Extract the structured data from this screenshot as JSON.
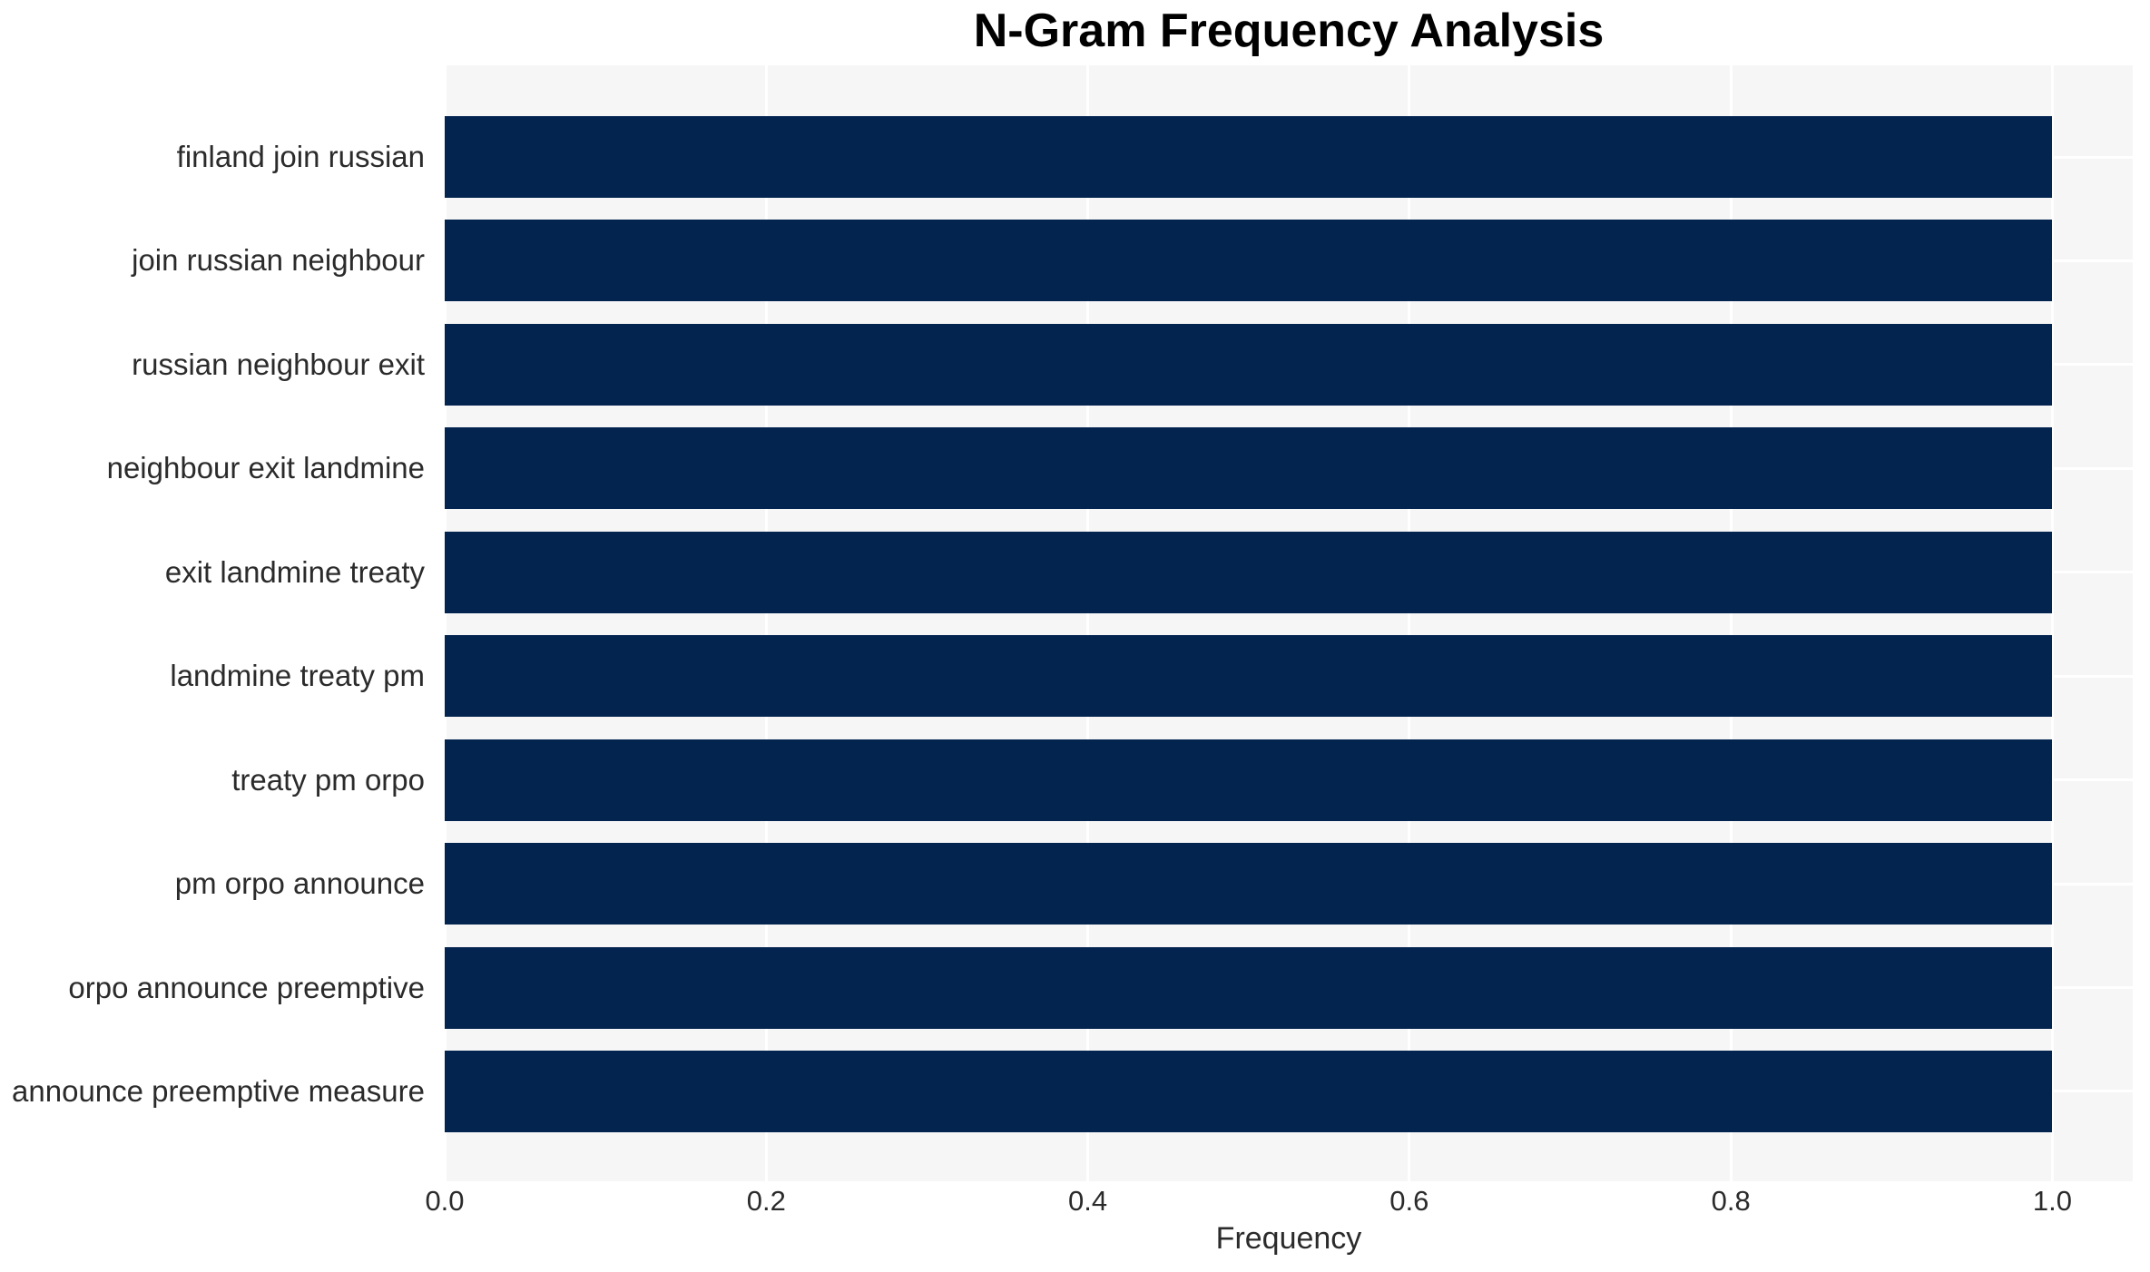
{
  "chart_data": {
    "type": "bar",
    "orientation": "horizontal",
    "title": "N-Gram Frequency Analysis",
    "xlabel": "Frequency",
    "ylabel": "",
    "categories": [
      "finland join russian",
      "join russian neighbour",
      "russian neighbour exit",
      "neighbour exit landmine",
      "exit landmine treaty",
      "landmine treaty pm",
      "treaty pm orpo",
      "pm orpo announce",
      "orpo announce preemptive",
      "announce preemptive measure"
    ],
    "values": [
      1.0,
      1.0,
      1.0,
      1.0,
      1.0,
      1.0,
      1.0,
      1.0,
      1.0,
      1.0
    ],
    "xticks": [
      "0.0",
      "0.2",
      "0.4",
      "0.6",
      "0.8",
      "1.0"
    ],
    "xtick_values": [
      0.0,
      0.2,
      0.4,
      0.6,
      0.8,
      1.0
    ],
    "xlim": [
      0,
      1.05
    ],
    "grid": true,
    "legend": false,
    "colors": {
      "bar": "#042450",
      "plot_background": "#f6f6f7",
      "gridline": "#ffffff",
      "title_text": "#000000",
      "label_text": "#2b2b2b",
      "figure_background": "#ffffff"
    }
  }
}
